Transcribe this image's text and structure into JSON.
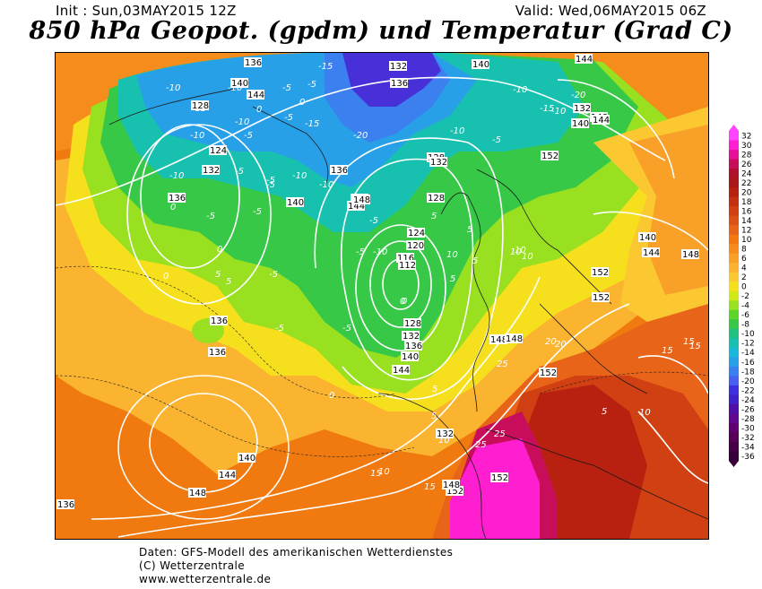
{
  "header": {
    "init": "Init : Sun,03MAY2015  12Z",
    "valid": "Valid: Wed,06MAY2015 06Z",
    "title": "850 hPa Geopot. (gpdm) und Temperatur (Grad C)"
  },
  "footer": {
    "line1": "Daten: GFS-Modell des amerikanischen Wetterdienstes",
    "line2": "(C) Wetterzentrale",
    "line3": "www.wetterzentrale.de"
  },
  "colorbar": {
    "levels": [
      "32",
      "30",
      "28",
      "26",
      "24",
      "22",
      "20",
      "18",
      "16",
      "14",
      "12",
      "10",
      "8",
      "6",
      "4",
      "2",
      "0",
      "-2",
      "-4",
      "-6",
      "-8",
      "-10",
      "-12",
      "-14",
      "-16",
      "-18",
      "-20",
      "-22",
      "-24",
      "-26",
      "-28",
      "-30",
      "-32",
      "-34",
      "-36"
    ],
    "colors": [
      "#ff44ff",
      "#ff1fd0",
      "#e8129a",
      "#c80e5a",
      "#b0102a",
      "#a81818",
      "#b82010",
      "#c43010",
      "#d04012",
      "#dc5214",
      "#e86418",
      "#f07a10",
      "#f58c1c",
      "#f8a028",
      "#fab430",
      "#fcc832",
      "#f6e01e",
      "#d0e818",
      "#98e020",
      "#5cd428",
      "#38c848",
      "#20c080",
      "#18c0b0",
      "#18b8d8",
      "#28a0e8",
      "#3c80f0",
      "#4860f0",
      "#3c30e0",
      "#4020c8",
      "#5010a8",
      "#600890",
      "#600070",
      "#580058",
      "#480048",
      "#380038"
    ]
  },
  "map": {
    "temperature_labels": [
      "-15",
      "-10",
      "-10",
      "-5",
      "-5",
      "0",
      "0",
      "-10",
      "-15",
      "-15",
      "-10",
      "-20",
      "-15",
      "-10",
      "-10",
      "-5",
      "-5",
      "-10",
      "-20",
      "-10",
      "-5",
      "-5",
      "-5",
      "-5",
      "-10",
      "-5",
      "-10",
      "-10",
      "-5",
      "-5",
      "-5",
      "-5",
      "0",
      "0",
      "0",
      "5",
      "5",
      "10",
      "10",
      "10",
      "5",
      "5",
      "5",
      "5",
      "10",
      "15",
      "15",
      "15",
      "20",
      "20",
      "25",
      "25",
      "25",
      "5",
      "10",
      "10",
      "15",
      "15",
      "10",
      "5",
      "-5",
      "0",
      "0",
      "-10",
      "-5",
      "-5",
      "0",
      "5"
    ],
    "height_labels": [
      "132",
      "136",
      "140",
      "144",
      "128",
      "124",
      "132",
      "136",
      "140",
      "144",
      "148",
      "144",
      "140",
      "132",
      "128",
      "136",
      "132",
      "128",
      "140",
      "140",
      "144",
      "148",
      "124",
      "120",
      "116",
      "112",
      "128",
      "132",
      "136",
      "140",
      "144",
      "148",
      "148",
      "152",
      "152",
      "152",
      "140",
      "144",
      "148",
      "152",
      "152",
      "136",
      "136",
      "136",
      "140",
      "144",
      "148",
      "152",
      "148",
      "132",
      "136"
    ]
  }
}
